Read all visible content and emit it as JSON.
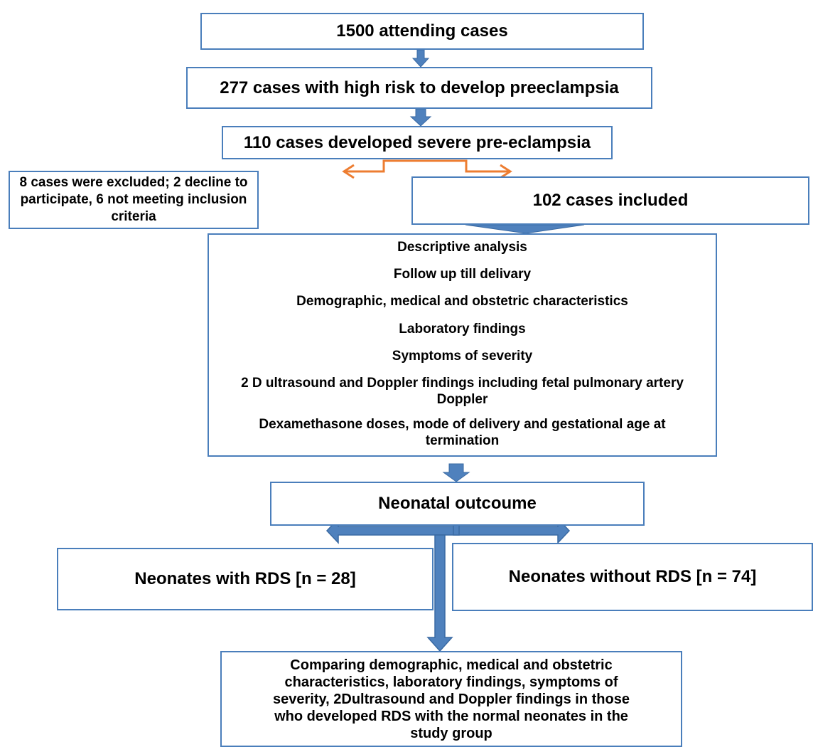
{
  "nodes": {
    "attending": "1500 attending cases",
    "high_risk": "277 cases with high risk to develop preeclampsia",
    "severe": "110 cases developed severe pre-eclampsia",
    "excluded": "8 cases were excluded; 2 decline to participate, 6 not meeting inclusion criteria",
    "included": "102 cases included",
    "analysis": [
      "Descriptive analysis",
      "Follow up till delivary",
      "Demographic, medical and obstetric characteristics",
      "Laboratory findings",
      "Symptoms of severity",
      "2 D ultrasound and Doppler findings including fetal pulmonary artery Doppler",
      "Dexamethasone doses, mode of delivery and gestational age at termination"
    ],
    "outcome": "Neonatal outcoume",
    "with_rds": "Neonates with RDS [n = 28]",
    "without_rds": "Neonates without RDS [n = 74]",
    "comparison": "Comparing demographic, medical and obstetric characteristics, laboratory findings, symptoms of severity, 2Dultrasound and Doppler findings in those who developed RDS with the normal neonates in the study group"
  },
  "colors": {
    "box_border": "#4a7ebb",
    "arrow_fill": "#4f81bd",
    "split_arrow": "#ed7d31"
  }
}
